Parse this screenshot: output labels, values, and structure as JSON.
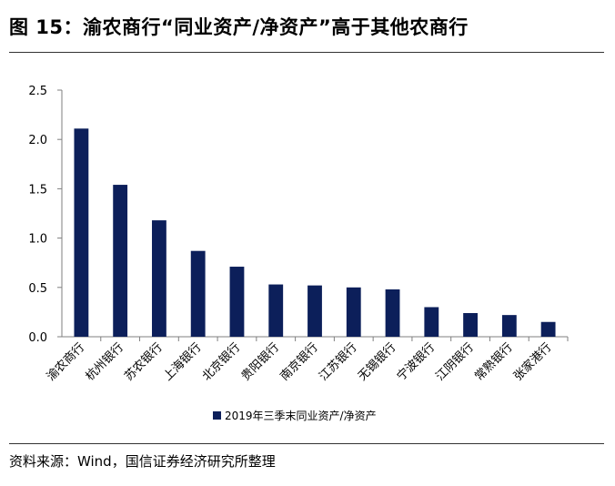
{
  "title": "图 15：渝农商行“同业资产/净资产”高于其他农商行",
  "source": "资料来源：Wind，国信证券经济研究所整理",
  "colors": {
    "bar": "#0c1f5a",
    "axis": "#7f7f7f",
    "rule": "#333333"
  },
  "chart_data": {
    "type": "bar",
    "categories": [
      "渝农商行",
      "杭州银行",
      "苏农银行",
      "上海银行",
      "北京银行",
      "贵阳银行",
      "南京银行",
      "江苏银行",
      "无锡银行",
      "宁波银行",
      "江阴银行",
      "常熟银行",
      "张家港行"
    ],
    "series": [
      {
        "name": "2019年三季末同业资产/净资产",
        "values": [
          2.11,
          1.54,
          1.18,
          0.87,
          0.71,
          0.53,
          0.52,
          0.5,
          0.48,
          0.3,
          0.24,
          0.22,
          0.15
        ]
      }
    ],
    "yticks": [
      "0.0",
      "0.5",
      "1.0",
      "1.5",
      "2.0",
      "2.5"
    ],
    "ylim": [
      0,
      2.5
    ],
    "grid": false,
    "legend_position": "bottom"
  }
}
